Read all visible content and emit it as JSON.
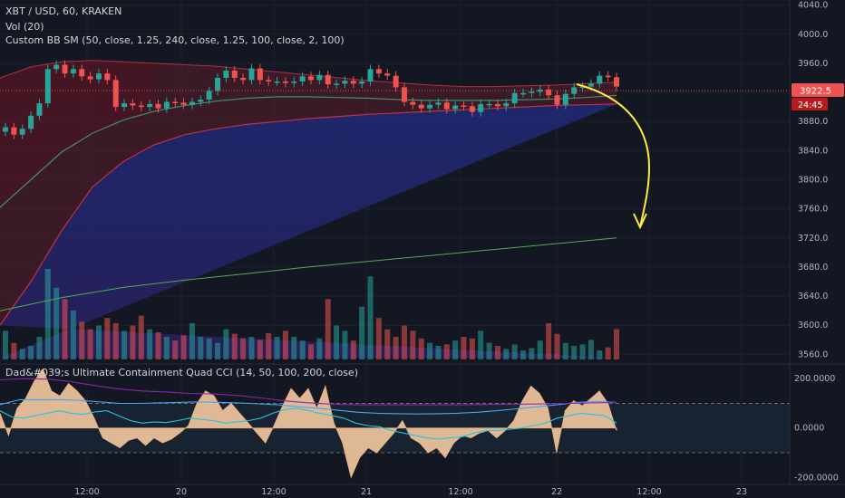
{
  "legend": {
    "symbol": "XBT / USD, 60, KRAKEN",
    "volume": "Vol (20)",
    "bands": "Custom BB SM (50, close, 1.25, 240, close, 1.25, 100, close, 2, 100)",
    "cci": "Dad&#039;s Ultimate Containment Quad CCI (14, 50, 100, 200, close)"
  },
  "price_badge": {
    "value": "3922.5",
    "countdown": "24:45",
    "color": "#ef5350"
  },
  "colors": {
    "background": "#131722",
    "up": "#26a69a",
    "down": "#ef5350",
    "annotation": "#ffeb3b",
    "cci_fill": "#f5c9a0",
    "cci_short": "#26c6da",
    "cci_long": "#8e24aa",
    "ma_long": "#4caf50"
  },
  "chart_data": [
    {
      "type": "line",
      "title": "XBT / USD, 60, KRAKEN",
      "price_axis": {
        "ticks": [
          "4040.0",
          "4000.0",
          "3960.0",
          "3920.0",
          "3880.0",
          "3840.0",
          "3800.0",
          "3760.0",
          "3720.0",
          "3680.0",
          "3640.0",
          "3600.0",
          "3560.0"
        ],
        "ylim": [
          3553,
          4042
        ]
      },
      "time_axis": {
        "ticks": [
          "12:00",
          "20",
          "12:00",
          "21",
          "12:00",
          "22",
          "12:00",
          "23"
        ]
      },
      "series": [
        {
          "name": "XBT / USD",
          "values": [
            3872,
            3862,
            3870,
            3888,
            3905,
            3952,
            3958,
            3946,
            3952,
            3942,
            3938,
            3946,
            3937,
            3900,
            3905,
            3902,
            3900,
            3904,
            3898,
            3907,
            3906,
            3903,
            3907,
            3910,
            3922,
            3940,
            3950,
            3940,
            3937,
            3953,
            3937,
            3935,
            3935,
            3933,
            3935,
            3942,
            3937,
            3944,
            3931,
            3932,
            3936,
            3932,
            3935,
            3952,
            3946,
            3943,
            3927,
            3907,
            3903,
            3898,
            3903,
            3906,
            3897,
            3902,
            3901,
            3893,
            3904,
            3904,
            3901,
            3905,
            3919,
            3919,
            3921,
            3924,
            3916,
            3903,
            3918,
            3927,
            3928,
            3932,
            3943,
            3941,
            3928
          ]
        },
        {
          "name": "Band upper",
          "values": [
            3940,
            3955,
            3962,
            3964,
            3962,
            3960,
            3958,
            3956,
            3952,
            3948,
            3944,
            3940,
            3936,
            3933,
            3930,
            3928,
            3928,
            3929,
            3930,
            3932,
            3934
          ]
        },
        {
          "name": "Band mid",
          "values": [
            3762,
            3800,
            3838,
            3864,
            3882,
            3894,
            3902,
            3908,
            3912,
            3914,
            3914,
            3913,
            3912,
            3910,
            3909,
            3909,
            3909,
            3910,
            3911,
            3913,
            3916
          ]
        },
        {
          "name": "Band lower",
          "values": [
            3600,
            3660,
            3730,
            3790,
            3825,
            3848,
            3862,
            3870,
            3876,
            3880,
            3884,
            3887,
            3890,
            3892,
            3894,
            3896,
            3898,
            3900,
            3902,
            3903,
            3904
          ]
        },
        {
          "name": "Long MA",
          "values": [
            3620,
            3638,
            3652,
            3662,
            3671,
            3680,
            3688,
            3696,
            3704,
            3712,
            3720
          ]
        }
      ],
      "volume": [
        38,
        22,
        14,
        18,
        30,
        120,
        95,
        80,
        65,
        50,
        40,
        45,
        55,
        48,
        38,
        45,
        58,
        40,
        36,
        30,
        25,
        32,
        48,
        30,
        28,
        22,
        40,
        34,
        28,
        30,
        26,
        35,
        30,
        38,
        30,
        25,
        20,
        28,
        80,
        45,
        38,
        25,
        70,
        110,
        55,
        40,
        30,
        45,
        38,
        28,
        22,
        18,
        20,
        25,
        30,
        28,
        38,
        22,
        18,
        14,
        20,
        12,
        15,
        25,
        48,
        34,
        22,
        18,
        20,
        26,
        12,
        16,
        40
      ]
    },
    {
      "type": "area",
      "title": "Dad&#039;s Ultimate Containment Quad CCI (14, 50, 100, 200, close)",
      "yaxis": {
        "ticks": [
          "200.0000",
          "0.0000",
          "-200.0000"
        ],
        "ylim": [
          -210,
          230
        ],
        "levels": [
          100,
          -100
        ]
      },
      "series": [
        {
          "name": "CCI 14",
          "values": [
            60,
            -30,
            80,
            120,
            190,
            240,
            150,
            130,
            180,
            150,
            110,
            40,
            -40,
            -60,
            -80,
            -50,
            -40,
            -70,
            -40,
            -60,
            -45,
            -20,
            10,
            100,
            150,
            130,
            70,
            100,
            60,
            20,
            -20,
            -60,
            10,
            90,
            160,
            120,
            160,
            80,
            170,
            20,
            -60,
            -200,
            -120,
            -80,
            -100,
            -60,
            -20,
            30,
            -40,
            -60,
            -100,
            -80,
            -120,
            -60,
            -30,
            -40,
            -20,
            -10,
            -40,
            -10,
            30,
            110,
            170,
            140,
            80,
            -100,
            70,
            110,
            90,
            120,
            150,
            100,
            -10
          ]
        },
        {
          "name": "CCI 50",
          "values": [
            70,
            45,
            40,
            50,
            60,
            70,
            60,
            55,
            65,
            70,
            50,
            30,
            20,
            25,
            22,
            30,
            40,
            35,
            30,
            20,
            25,
            30,
            40,
            60,
            75,
            80,
            70,
            60,
            50,
            40,
            20,
            10,
            5,
            -10,
            -20,
            -30,
            -40,
            -45,
            -40,
            -35,
            -20,
            -10,
            -10,
            -5,
            0,
            10,
            20,
            40,
            50,
            60,
            55,
            50,
            20
          ]
        },
        {
          "name": "CCI 100",
          "values": [
            95,
            115,
            115,
            115,
            112,
            106,
            100,
            100,
            102,
            104,
            106,
            104,
            102,
            98,
            94,
            86,
            80,
            72,
            64,
            60,
            58,
            57,
            58,
            60,
            64,
            70,
            78,
            86,
            94,
            104,
            108,
            104
          ]
        },
        {
          "name": "CCI 200",
          "values": [
            195,
            200,
            198,
            188,
            172,
            158,
            150,
            146,
            140,
            138,
            132,
            122,
            110,
            102,
            97,
            94,
            94,
            94,
            94,
            94,
            95,
            96,
            97,
            98,
            100,
            102,
            104
          ]
        }
      ]
    }
  ]
}
